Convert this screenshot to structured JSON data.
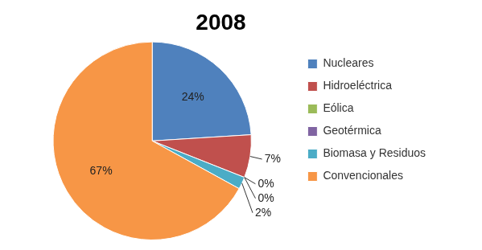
{
  "chart_data": {
    "type": "pie",
    "title": "2008",
    "categories": [
      "Nucleares",
      "Hidroeléctrica",
      "Eólica",
      "Geotérmica",
      "Biomasa y Residuos",
      "Convencionales"
    ],
    "values": [
      24,
      7,
      0,
      0,
      2,
      67
    ],
    "value_labels": [
      "24%",
      "7%",
      "0%",
      "0%",
      "2%",
      "67%"
    ],
    "colors": [
      "#4f81bd",
      "#c0504d",
      "#9bbb59",
      "#8064a2",
      "#4bacc6",
      "#f79646"
    ],
    "legend": "right",
    "data_labels": true
  }
}
